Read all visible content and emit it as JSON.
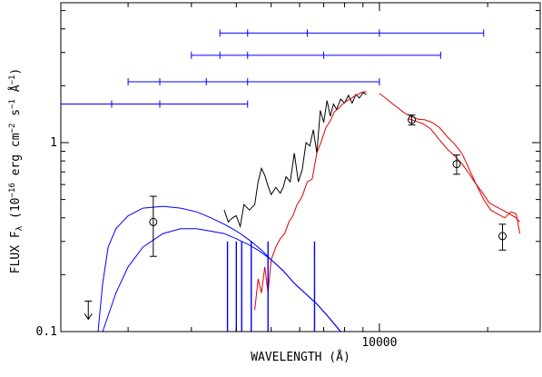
{
  "chart_data": {
    "type": "line",
    "title": "",
    "xlabel": "WAVELENGTH (Å)",
    "ylabel": "FLUX F",
    "ylabel_sub": "λ",
    "ylabel_units": " (10",
    "ylabel_exp1": "−16",
    "ylabel_mid": " erg cm",
    "ylabel_exp2": "−2",
    "ylabel_s": " s",
    "ylabel_exp3": "−1",
    "ylabel_A": " Å",
    "ylabel_exp4": "−1",
    "ylabel_end": ")",
    "x_scale": "log",
    "y_scale": "log",
    "xlim": [
      1300,
      28000
    ],
    "ylim": [
      0.1,
      5.5
    ],
    "x_tick_labels": [
      {
        "value": 10000,
        "label": "10000"
      }
    ],
    "y_tick_labels": [
      {
        "value": 0.1,
        "label": "0.1"
      },
      {
        "value": 1,
        "label": "1"
      }
    ],
    "colors": {
      "black": "#000000",
      "red": "#e00000",
      "blue": "#0000ff"
    },
    "series": [
      {
        "color": "#000000",
        "x": [
          3700,
          3800,
          3900,
          4000,
          4100,
          4200,
          4350,
          4500,
          4600,
          4700,
          4800,
          4900,
          5000,
          5150,
          5300,
          5400,
          5500,
          5650,
          5800,
          5950,
          6100,
          6250,
          6400,
          6550,
          6700,
          6850,
          7000,
          7150,
          7300,
          7450,
          7600,
          7800,
          8000,
          8200,
          8400,
          8600,
          8800,
          9000,
          9200
        ],
        "y": [
          0.44,
          0.38,
          0.4,
          0.41,
          0.36,
          0.47,
          0.44,
          0.47,
          0.62,
          0.73,
          0.67,
          0.59,
          0.53,
          0.58,
          0.54,
          0.58,
          0.66,
          0.62,
          0.88,
          0.62,
          0.72,
          1.0,
          0.96,
          1.17,
          0.88,
          1.48,
          1.28,
          1.67,
          1.38,
          1.6,
          1.5,
          1.7,
          1.62,
          1.78,
          1.62,
          1.8,
          1.72,
          1.84,
          1.8
        ]
      },
      {
        "color": "#e00000",
        "x": [
          4500,
          4600,
          4700,
          4800,
          4900,
          5000,
          5150,
          5300,
          5450,
          5600,
          5750,
          5900,
          6100,
          6300,
          6500,
          6700,
          6900,
          7100,
          7300,
          7500,
          7700,
          7900,
          8100,
          8300,
          8500,
          8700,
          8900,
          9100,
          9200
        ],
        "y": [
          0.13,
          0.19,
          0.16,
          0.22,
          0.16,
          0.24,
          0.28,
          0.31,
          0.33,
          0.38,
          0.41,
          0.47,
          0.52,
          0.62,
          0.64,
          0.88,
          1.02,
          1.2,
          1.3,
          1.46,
          1.52,
          1.6,
          1.66,
          1.7,
          1.76,
          1.8,
          1.84,
          1.86,
          1.85
        ]
      },
      {
        "color": "#e00000",
        "x": [
          10000,
          10400,
          10800,
          11200,
          11600,
          12000,
          12400,
          12800,
          13400,
          14000,
          14700,
          15400,
          16200,
          17000,
          17800,
          18600,
          19500,
          20400,
          21300,
          22300,
          23200,
          24000,
          24600
        ],
        "y": [
          1.82,
          1.72,
          1.62,
          1.54,
          1.46,
          1.4,
          1.37,
          1.33,
          1.32,
          1.28,
          1.2,
          1.08,
          0.98,
          0.87,
          0.72,
          0.6,
          0.5,
          0.44,
          0.42,
          0.4,
          0.43,
          0.42,
          0.33
        ]
      },
      {
        "color": "#e00000",
        "x": [
          12000,
          12600,
          13200,
          13900,
          14600,
          15400,
          16200,
          17000,
          17800,
          18600,
          19400,
          20200,
          21000,
          22000,
          23000,
          24000,
          24600
        ],
        "y": [
          1.34,
          1.3,
          1.26,
          1.18,
          1.05,
          0.93,
          0.85,
          0.77,
          0.68,
          0.6,
          0.54,
          0.48,
          0.46,
          0.44,
          0.42,
          0.4,
          0.38
        ]
      },
      {
        "color": "#0000ff",
        "x": [
          1650,
          1700,
          1760,
          1850,
          2000,
          2200,
          2500,
          2800,
          3100,
          3400,
          3700,
          3900,
          4100,
          4400,
          4700,
          5000,
          5400,
          5800,
          6200,
          6700,
          7200,
          7800
        ],
        "y": [
          0.1,
          0.18,
          0.28,
          0.35,
          0.41,
          0.45,
          0.46,
          0.45,
          0.43,
          0.4,
          0.37,
          0.35,
          0.33,
          0.3,
          0.27,
          0.24,
          0.21,
          0.18,
          0.16,
          0.14,
          0.12,
          0.1
        ]
      },
      {
        "color": "#0000ff",
        "x": [
          1700,
          1850,
          2000,
          2200,
          2500,
          2800,
          3100,
          3400,
          3700,
          4000,
          4300,
          4600,
          5000,
          5400,
          5800,
          6200,
          6700,
          7200,
          7800
        ],
        "y": [
          0.1,
          0.16,
          0.22,
          0.28,
          0.33,
          0.35,
          0.35,
          0.34,
          0.33,
          0.31,
          0.29,
          0.27,
          0.24,
          0.21,
          0.18,
          0.16,
          0.14,
          0.12,
          0.1
        ]
      }
    ],
    "blue_dips": [
      {
        "x": 3780,
        "depth": 0.05
      },
      {
        "x": 4000,
        "depth": 0.06
      },
      {
        "x": 4140,
        "depth": 0.08
      },
      {
        "x": 4400,
        "depth": 0.03
      },
      {
        "x": 4900,
        "depth": 0.02
      },
      {
        "x": 6600,
        "depth": 0.02
      }
    ],
    "points": [
      {
        "x": 2350,
        "y": 0.38,
        "yerr_lo": 0.25,
        "yerr_hi": 0.52
      },
      {
        "x": 12300,
        "y": 1.32,
        "yerr_lo": 1.24,
        "yerr_hi": 1.4
      },
      {
        "x": 16400,
        "y": 0.77,
        "yerr_lo": 0.68,
        "yerr_hi": 0.86
      },
      {
        "x": 22000,
        "y": 0.32,
        "yerr_lo": 0.27,
        "yerr_hi": 0.37
      }
    ],
    "upper_limits": [
      {
        "x": 1550,
        "y": 0.145
      }
    ],
    "bandpass_rows": [
      {
        "y": 3.8,
        "x_start": 3600,
        "x_end": 19500,
        "ticks": [
          4300,
          6300,
          10000
        ]
      },
      {
        "y": 2.9,
        "x_start": 3000,
        "x_end": 14800,
        "ticks": [
          3600,
          4300,
          7000
        ]
      },
      {
        "y": 2.1,
        "x_start": 2000,
        "x_end": 10000,
        "ticks": [
          2450,
          3300,
          4300
        ]
      },
      {
        "y": 1.6,
        "x_start": 1300,
        "x_end": 4300,
        "ticks": [
          1800,
          2450
        ]
      }
    ]
  }
}
